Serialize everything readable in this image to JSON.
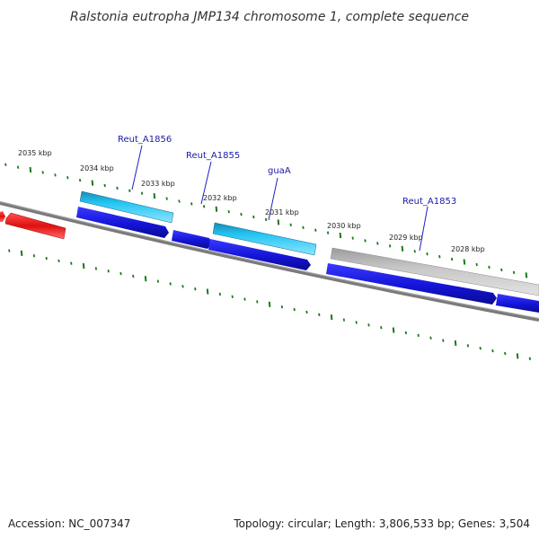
{
  "title": "Ralstonia eutropha JMP134 chromosome 1, complete sequence",
  "footer": {
    "accession": "Accession: NC_007347",
    "summary": "Topology: circular; Length: 3,806,533 bp; Genes: 3,504"
  },
  "kbp_labels": [
    "2035 kbp",
    "2034 kbp",
    "2033 kbp",
    "2032 kbp",
    "2031 kbp",
    "2030 kbp",
    "2029 kbp",
    "2028 kbp"
  ],
  "gene_labels": [
    "Reut_A1856",
    "Reut_A1855",
    "guaA",
    "Reut_A1853"
  ],
  "colors": {
    "backbone": "#808080",
    "tick": "#1a7a1a",
    "cds_forward": "#1c1cd6",
    "gene_cyan": "#19b4e6",
    "gene_red": "#e81818",
    "gene_gray": "#bfbfbf",
    "label_line": "#2020c0"
  }
}
